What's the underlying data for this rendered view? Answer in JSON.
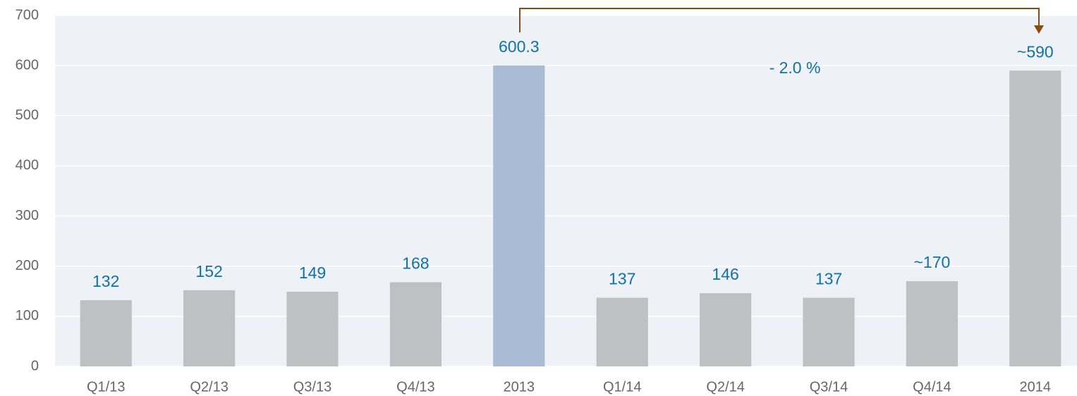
{
  "chart_data": {
    "type": "bar",
    "categories": [
      "Q1/13",
      "Q2/13",
      "Q3/13",
      "Q4/13",
      "2013",
      "Q1/14",
      "Q2/14",
      "Q3/14",
      "Q4/14",
      "2014"
    ],
    "values": [
      132,
      152,
      149,
      168,
      600.3,
      137,
      146,
      137,
      170,
      590
    ],
    "value_labels": [
      "132",
      "152",
      "149",
      "168",
      "600.3",
      "137",
      "146",
      "137",
      "~170",
      "~590"
    ],
    "colors": [
      "#bfc0c4",
      "#bfc0c4",
      "#bfc0c4",
      "#bfc0c4",
      "#aabbd6",
      "#bfc0c4",
      "#bfc0c4",
      "#bfc0c4",
      "#bfc0c4",
      "#bfc0c4"
    ],
    "annotation": "- 2.0 %",
    "ylim": [
      0,
      700
    ],
    "yticks": [
      0,
      100,
      200,
      300,
      400,
      500,
      600,
      700
    ],
    "grid": true
  }
}
